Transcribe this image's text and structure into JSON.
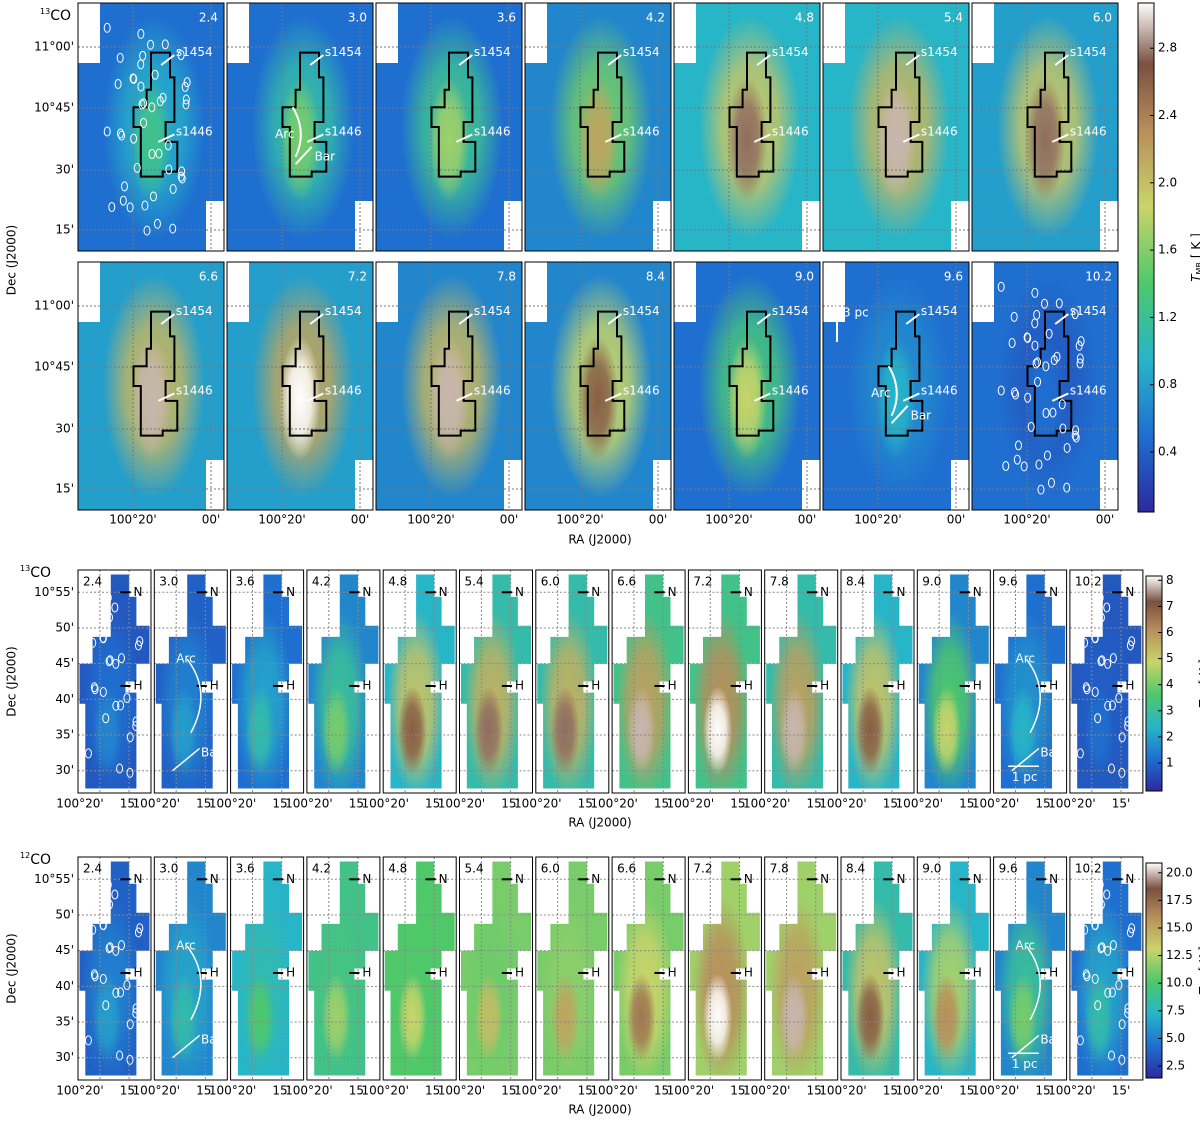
{
  "figures": [
    {
      "molecule": {
        "mass": "13",
        "name": "CO"
      },
      "channels": [
        "2.4",
        "3.0",
        "3.6",
        "4.2",
        "4.8",
        "5.4",
        "6.0",
        "6.6",
        "7.2",
        "7.8",
        "8.4",
        "9.0",
        "9.6",
        "10.2"
      ],
      "sources": [
        "s1454",
        "s1446"
      ],
      "features": [
        "Arc",
        "Bar"
      ],
      "scale_bar": "3 pc",
      "dec_ticks": [
        "11°00'",
        "10°45'",
        "30'",
        "15'"
      ],
      "ra_ticks": [
        "100°20'",
        "00'"
      ],
      "ra_label": "RA (J2000)",
      "dec_label": "Dec (J2000)",
      "colorbar": {
        "symbol": "T",
        "subscript": "MB",
        "unit": "[ K ]",
        "ticks": [
          "0.4",
          "0.8",
          "1.2",
          "1.6",
          "2.0",
          "2.4",
          "2.8"
        ]
      }
    },
    {
      "molecule": {
        "mass": "13",
        "name": "CO"
      },
      "channels": [
        "2.4",
        "3.0",
        "3.6",
        "4.2",
        "4.8",
        "5.4",
        "6.0",
        "6.6",
        "7.2",
        "7.8",
        "8.4",
        "9.0",
        "9.6",
        "10.2"
      ],
      "markers": [
        "N",
        "H"
      ],
      "features": [
        "Arc",
        "Bar"
      ],
      "scale_bar": "1 pc",
      "dec_ticks": [
        "10°55'",
        "50'",
        "45'",
        "40'",
        "35'",
        "30'"
      ],
      "ra_ticks": [
        "100°20'",
        "15'"
      ],
      "ra_label": "RA (J2000)",
      "dec_label": "Dec (J2000)",
      "colorbar": {
        "symbol": "T",
        "subscript": "MB",
        "unit": "[ K ]",
        "ticks": [
          "1",
          "2",
          "3",
          "4",
          "5",
          "6",
          "7",
          "8"
        ]
      }
    },
    {
      "molecule": {
        "mass": "12",
        "name": "CO"
      },
      "channels": [
        "2.4",
        "3.0",
        "3.6",
        "4.2",
        "4.8",
        "5.4",
        "6.0",
        "6.6",
        "7.2",
        "7.8",
        "8.4",
        "9.0",
        "9.6",
        "10.2"
      ],
      "markers": [
        "N",
        "H"
      ],
      "features": [
        "Arc",
        "Bar"
      ],
      "scale_bar": "1 pc",
      "dec_ticks": [
        "10°55'",
        "50'",
        "45'",
        "40'",
        "35'",
        "30'"
      ],
      "ra_ticks": [
        "100°20'",
        "15'"
      ],
      "ra_label": "RA (J2000)",
      "dec_label": "Dec (J2000)",
      "colorbar": {
        "symbol": "T",
        "subscript": "MB",
        "unit": "[ K ]",
        "ticks": [
          "2.5",
          "5.0",
          "7.5",
          "10.0",
          "12.5",
          "15.0",
          "17.5",
          "20.0"
        ]
      }
    }
  ]
}
